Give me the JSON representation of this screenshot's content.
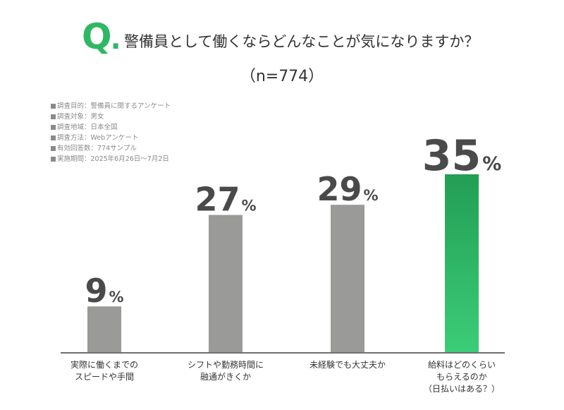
{
  "header": {
    "q_mark": "Q",
    "q_dot": ".",
    "title": "警備員として働くならどんなことが気になりますか？",
    "sample": "（n=774）"
  },
  "survey_meta": [
    "調査目的：警備員に関するアンケート",
    "調査対象：男女",
    "調査地域：日本全国",
    "調査方法：Webアンケート",
    "有効回答数：774サンプル",
    "実施期間：2025年6月26日〜7月2日"
  ],
  "colors": {
    "accent": "#2fb864",
    "bar_default": "#9a9a99",
    "bar_highlight_top": "#239e54",
    "bar_highlight_bottom": "#3ccc78",
    "value_text": "#4a4a4a",
    "axis": "#707070"
  },
  "chart_data": {
    "type": "bar",
    "categories": [
      "実際に働くまでの\nスピードや手間",
      "シフトや勤務時間に\n融通がきくか",
      "未経験でも大丈夫か",
      "給料はどのくらい\nもらえるのか\n（日払いはある？）"
    ],
    "values": [
      9,
      27,
      29,
      35
    ],
    "value_labels": [
      "9",
      "27",
      "29",
      "35"
    ],
    "unit": "%",
    "highlight_index": 3,
    "ylim": [
      0,
      35
    ],
    "grid": false,
    "legend": "none"
  }
}
